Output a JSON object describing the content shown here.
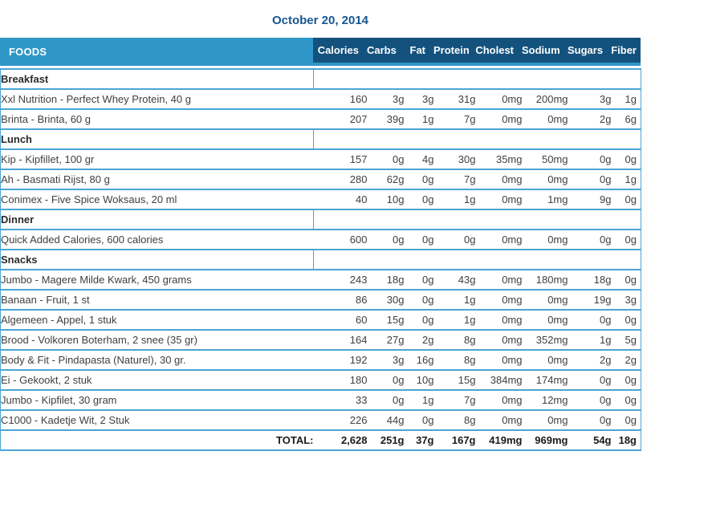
{
  "title": "October 20, 2014",
  "table": {
    "foods_header": "FOODS",
    "columns": [
      "Calories",
      "Carbs",
      "Fat",
      "Protein",
      "Cholest",
      "Sodium",
      "Sugars",
      "Fiber"
    ],
    "sections": [
      {
        "name": "Breakfast",
        "rows": [
          {
            "food": "Xxl Nutrition - Perfect Whey Protein, 40 g",
            "values": [
              "160",
              "3g",
              "3g",
              "31g",
              "0mg",
              "200mg",
              "3g",
              "1g"
            ]
          },
          {
            "food": "Brinta - Brinta, 60 g",
            "values": [
              "207",
              "39g",
              "1g",
              "7g",
              "0mg",
              "0mg",
              "2g",
              "6g"
            ]
          }
        ]
      },
      {
        "name": "Lunch",
        "rows": [
          {
            "food": "Kip - Kipfillet, 100 gr",
            "values": [
              "157",
              "0g",
              "4g",
              "30g",
              "35mg",
              "50mg",
              "0g",
              "0g"
            ]
          },
          {
            "food": "Ah - Basmati Rijst, 80 g",
            "values": [
              "280",
              "62g",
              "0g",
              "7g",
              "0mg",
              "0mg",
              "0g",
              "1g"
            ]
          },
          {
            "food": "Conimex - Five Spice Woksaus, 20 ml",
            "values": [
              "40",
              "10g",
              "0g",
              "1g",
              "0mg",
              "1mg",
              "9g",
              "0g"
            ]
          }
        ]
      },
      {
        "name": "Dinner",
        "rows": [
          {
            "food": "Quick Added Calories, 600 calories",
            "values": [
              "600",
              "0g",
              "0g",
              "0g",
              "0mg",
              "0mg",
              "0g",
              "0g"
            ]
          }
        ]
      },
      {
        "name": "Snacks",
        "rows": [
          {
            "food": "Jumbo - Magere Milde Kwark, 450 grams",
            "values": [
              "243",
              "18g",
              "0g",
              "43g",
              "0mg",
              "180mg",
              "18g",
              "0g"
            ]
          },
          {
            "food": "Banaan - Fruit, 1 st",
            "values": [
              "86",
              "30g",
              "0g",
              "1g",
              "0mg",
              "0mg",
              "19g",
              "3g"
            ]
          },
          {
            "food": "Algemeen - Appel, 1 stuk",
            "values": [
              "60",
              "15g",
              "0g",
              "1g",
              "0mg",
              "0mg",
              "0g",
              "0g"
            ]
          },
          {
            "food": "Brood - Volkoren Boterham, 2 snee (35 gr)",
            "values": [
              "164",
              "27g",
              "2g",
              "8g",
              "0mg",
              "352mg",
              "1g",
              "5g"
            ]
          },
          {
            "food": "Body & Fit - Pindapasta (Naturel), 30 gr.",
            "values": [
              "192",
              "3g",
              "16g",
              "8g",
              "0mg",
              "0mg",
              "2g",
              "2g"
            ]
          },
          {
            "food": "Ei - Gekookt, 2 stuk",
            "values": [
              "180",
              "0g",
              "10g",
              "15g",
              "384mg",
              "174mg",
              "0g",
              "0g"
            ]
          },
          {
            "food": "Jumbo - Kipfilet, 30 gram",
            "values": [
              "33",
              "0g",
              "1g",
              "7g",
              "0mg",
              "12mg",
              "0g",
              "0g"
            ]
          },
          {
            "food": "C1000 - Kadetje Wit, 2 Stuk",
            "values": [
              "226",
              "44g",
              "0g",
              "8g",
              "0mg",
              "0mg",
              "0g",
              "0g"
            ]
          }
        ]
      }
    ],
    "total": {
      "label": "TOTAL:",
      "values": [
        "2,628",
        "251g",
        "37g",
        "167g",
        "419mg",
        "969mg",
        "54g",
        "18g"
      ]
    }
  },
  "colors": {
    "header_light_blue": "#2f97c8",
    "header_dark_blue": "#14527e",
    "row_border_blue": "#4aa5d2",
    "title_blue": "#17568f"
  }
}
